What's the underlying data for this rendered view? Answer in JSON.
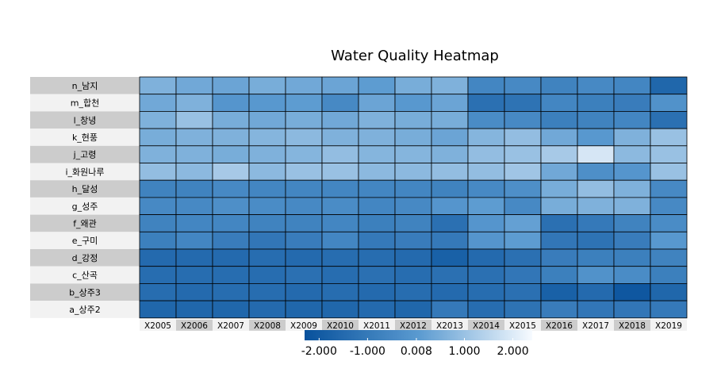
{
  "chart_data": {
    "type": "heatmap",
    "title": "Water Quality Heatmap",
    "rows": [
      "n_남지",
      "m_합천",
      "l_창녕",
      "k_현풍",
      "j_고령",
      "i_화원나루",
      "h_달성",
      "g_성주",
      "f_왜관",
      "e_구미",
      "d_강정",
      "c_산곡",
      "b_상주3",
      "a_상주2"
    ],
    "columns": [
      "X2005",
      "X2006",
      "X2007",
      "X2008",
      "X2009",
      "X2010",
      "X2011",
      "X2012",
      "X2013",
      "X2014",
      "X2015",
      "X2016",
      "X2017",
      "X2018",
      "X2019"
    ],
    "values": [
      [
        0.6,
        0.4,
        0.3,
        0.5,
        0.4,
        0.3,
        0.1,
        0.5,
        0.6,
        -0.6,
        -0.5,
        -0.7,
        -0.5,
        -0.6,
        -1.6
      ],
      [
        0.4,
        0.6,
        -0.1,
        0.0,
        0.1,
        -0.5,
        0.3,
        0.0,
        0.3,
        -1.3,
        -1.2,
        -0.6,
        -0.8,
        -0.9,
        -0.2
      ],
      [
        0.6,
        1.0,
        0.5,
        0.4,
        0.5,
        0.4,
        0.6,
        0.5,
        0.5,
        -0.4,
        -0.5,
        -0.8,
        -0.7,
        -0.6,
        -1.3
      ],
      [
        0.5,
        0.6,
        0.6,
        0.7,
        0.8,
        0.6,
        0.6,
        0.5,
        0.3,
        0.7,
        0.9,
        0.4,
        0.0,
        0.6,
        1.0
      ],
      [
        0.6,
        0.6,
        0.5,
        0.6,
        0.7,
        0.9,
        0.7,
        0.7,
        0.6,
        0.9,
        1.0,
        1.2,
        1.9,
        0.8,
        1.0
      ],
      [
        0.9,
        0.8,
        1.2,
        0.8,
        1.0,
        1.0,
        0.8,
        0.8,
        0.9,
        0.9,
        1.1,
        0.4,
        -0.3,
        -0.1,
        1.0
      ],
      [
        -0.7,
        -0.7,
        -0.5,
        -0.6,
        -0.6,
        -0.6,
        -0.6,
        -0.6,
        -0.7,
        -0.5,
        -0.3,
        0.5,
        0.9,
        0.6,
        -0.5
      ],
      [
        -0.5,
        -0.5,
        -0.3,
        -0.4,
        -0.5,
        -0.4,
        -0.6,
        -0.5,
        -0.1,
        0.1,
        -0.5,
        0.5,
        0.6,
        0.6,
        -0.5
      ],
      [
        -0.7,
        -0.6,
        -0.6,
        -0.7,
        -0.7,
        -0.6,
        -0.8,
        -0.7,
        -1.3,
        -0.1,
        0.2,
        -1.3,
        -1.0,
        -0.7,
        -0.4
      ],
      [
        -0.8,
        -0.6,
        -0.9,
        -1.1,
        -0.9,
        -0.6,
        -1.0,
        -0.9,
        -1.0,
        -0.1,
        0.1,
        -1.1,
        -1.2,
        -0.9,
        0.0
      ],
      [
        -1.5,
        -1.5,
        -1.5,
        -1.4,
        -1.5,
        -1.4,
        -1.4,
        -1.5,
        -1.8,
        -1.5,
        -1.3,
        -0.9,
        -0.8,
        -0.8,
        -0.7
      ],
      [
        -1.4,
        -1.4,
        -1.4,
        -1.4,
        -1.3,
        -1.4,
        -1.3,
        -1.4,
        -1.3,
        -1.3,
        -1.1,
        -0.8,
        -0.2,
        -0.4,
        -0.8
      ],
      [
        -1.4,
        -1.5,
        -1.4,
        -1.4,
        -1.5,
        -1.4,
        -1.5,
        -1.4,
        -1.5,
        -1.4,
        -1.3,
        -1.8,
        -1.5,
        -2.1,
        -1.6
      ],
      [
        -1.6,
        -1.6,
        -1.6,
        -1.5,
        -1.6,
        -1.6,
        -1.5,
        -1.6,
        -1.0,
        -1.4,
        -1.2,
        -0.9,
        -1.1,
        -1.1,
        -1.0
      ]
    ],
    "legend": {
      "position": "bottom",
      "ticks": [
        "-2.000",
        "-1.000",
        "0.008",
        "1.000",
        "2.000"
      ],
      "tick_values": [
        -2,
        -1,
        0.008,
        1,
        2
      ],
      "range": [
        -2.3,
        2.4
      ]
    },
    "colors": {
      "low": "#08519c",
      "mid": "#5a9ad0",
      "high": "#f7fbff",
      "label_bg_dark": "#cccccc",
      "label_bg_light": "#f2f2f2",
      "cell_border": "#000000"
    },
    "grid": true
  }
}
